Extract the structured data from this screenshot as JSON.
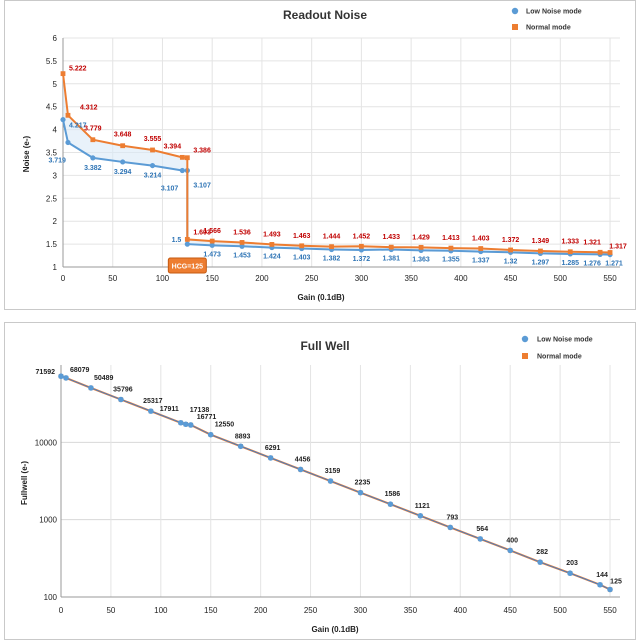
{
  "colors": {
    "low_noise": "#5b9bd5",
    "normal": "#ed7d31",
    "low_noise_label": "#2e74b5",
    "normal_label": "#c00000",
    "hcg_box": "#ed7d31",
    "grid": "#e4e4e4"
  },
  "chart_data": [
    {
      "type": "line",
      "title": "Readout Noise",
      "xlabel": "Gain (0.1dB)",
      "ylabel": "Noise (e-)",
      "xlim": [
        0,
        560
      ],
      "ylim": [
        1,
        6
      ],
      "xticks": [
        0,
        50,
        100,
        150,
        200,
        250,
        300,
        350,
        400,
        450,
        500,
        550
      ],
      "yticks": [
        1,
        1.5,
        2,
        2.5,
        3,
        3.5,
        4,
        4.5,
        5,
        5.5,
        6
      ],
      "grid": true,
      "legend": "top-right",
      "annotation": {
        "text": "HCG=125",
        "x": 125
      },
      "series": [
        {
          "name": "Low Noise mode",
          "x": [
            0,
            5,
            30,
            60,
            90,
            120,
            125,
            125,
            150,
            180,
            210,
            240,
            270,
            300,
            330,
            360,
            390,
            420,
            450,
            480,
            510,
            540,
            550
          ],
          "values": [
            4.217,
            3.719,
            3.382,
            3.294,
            3.214,
            3.107,
            3.107,
            1.5,
            1.473,
            1.453,
            1.424,
            1.403,
            1.382,
            1.372,
            1.381,
            1.363,
            1.355,
            1.337,
            1.32,
            1.297,
            1.285,
            1.276,
            1.271
          ],
          "labels": [
            "4.217",
            "3.719",
            "3.382",
            "3.294",
            "3.214",
            "3.107",
            "3.107",
            "1.5",
            "1.473",
            "1.453",
            "1.424",
            "1.403",
            "1.382",
            "1.372",
            "1.381",
            "1.363",
            "1.355",
            "1.337",
            "1.32",
            "1.297",
            "1.285",
            "1.276",
            "1.271"
          ]
        },
        {
          "name": "Normal mode",
          "x": [
            0,
            5,
            30,
            60,
            90,
            120,
            125,
            125,
            150,
            180,
            210,
            240,
            270,
            300,
            330,
            360,
            390,
            420,
            450,
            480,
            510,
            540,
            550
          ],
          "values": [
            5.222,
            4.312,
            3.779,
            3.648,
            3.555,
            3.394,
            3.386,
            1.603,
            1.566,
            1.536,
            1.493,
            1.463,
            1.444,
            1.452,
            1.433,
            1.429,
            1.413,
            1.403,
            1.372,
            1.349,
            1.333,
            1.321,
            1.317
          ],
          "labels": [
            "5.222",
            "4.312",
            "3.779",
            "3.648",
            "3.555",
            "3.394",
            "3.386",
            "1.603",
            "1.566",
            "1.536",
            "1.493",
            "1.463",
            "1.444",
            "1.452",
            "1.433",
            "1.429",
            "1.413",
            "1.403",
            "1.372",
            "1.349",
            "1.333",
            "1.321",
            "1.317"
          ]
        }
      ]
    },
    {
      "type": "line",
      "title": "Full Well",
      "xlabel": "Gain (0.1dB)",
      "ylabel": "Fullwell (e-)",
      "yscale": "log",
      "xlim": [
        0,
        560
      ],
      "ylim": [
        100,
        100000
      ],
      "xticks": [
        0,
        50,
        100,
        150,
        200,
        250,
        300,
        350,
        400,
        450,
        500,
        550
      ],
      "yticks": [
        100,
        1000,
        10000
      ],
      "grid": true,
      "legend": "top-right",
      "series": [
        {
          "name": "Low Noise mode",
          "x": [
            0,
            5,
            30,
            60,
            90,
            120,
            125,
            130,
            150,
            180,
            210,
            240,
            270,
            300,
            330,
            360,
            390,
            420,
            450,
            480,
            510,
            540,
            550
          ],
          "values": [
            71592,
            68079,
            50489,
            35796,
            25317,
            17911,
            17138,
            16771,
            12550,
            8893,
            6291,
            4456,
            3159,
            2235,
            1586,
            1121,
            793,
            564,
            400,
            282,
            203,
            144,
            125
          ]
        },
        {
          "name": "Normal mode",
          "x": [
            0,
            5,
            30,
            60,
            90,
            120,
            125,
            130,
            150,
            180,
            210,
            240,
            270,
            300,
            330,
            360,
            390,
            420,
            450,
            480,
            510,
            540,
            550
          ],
          "values": [
            71592,
            68079,
            50489,
            35796,
            25317,
            17911,
            17138,
            16771,
            12550,
            8893,
            6291,
            4456,
            3159,
            2235,
            1586,
            1121,
            793,
            564,
            400,
            282,
            203,
            144,
            125
          ]
        }
      ],
      "point_labels": {
        "x": [
          0,
          5,
          30,
          60,
          90,
          120,
          125,
          130,
          150,
          180,
          210,
          240,
          270,
          300,
          330,
          360,
          390,
          420,
          450,
          480,
          510,
          540,
          550
        ],
        "values": [
          71592,
          68079,
          50489,
          35796,
          25317,
          17911,
          17138,
          16771,
          12550,
          8893,
          6291,
          4456,
          3159,
          2235,
          1586,
          1121,
          793,
          564,
          400,
          282,
          203,
          144,
          125
        ],
        "text": [
          "71592",
          "68079",
          "50489",
          "35796",
          "25317",
          "17911",
          "17138",
          "16771",
          "12550",
          "8893",
          "6291",
          "4456",
          "3159",
          "2235",
          "1586",
          "1121",
          "793",
          "564",
          "400",
          "282",
          "203",
          "144",
          "125"
        ]
      }
    }
  ]
}
